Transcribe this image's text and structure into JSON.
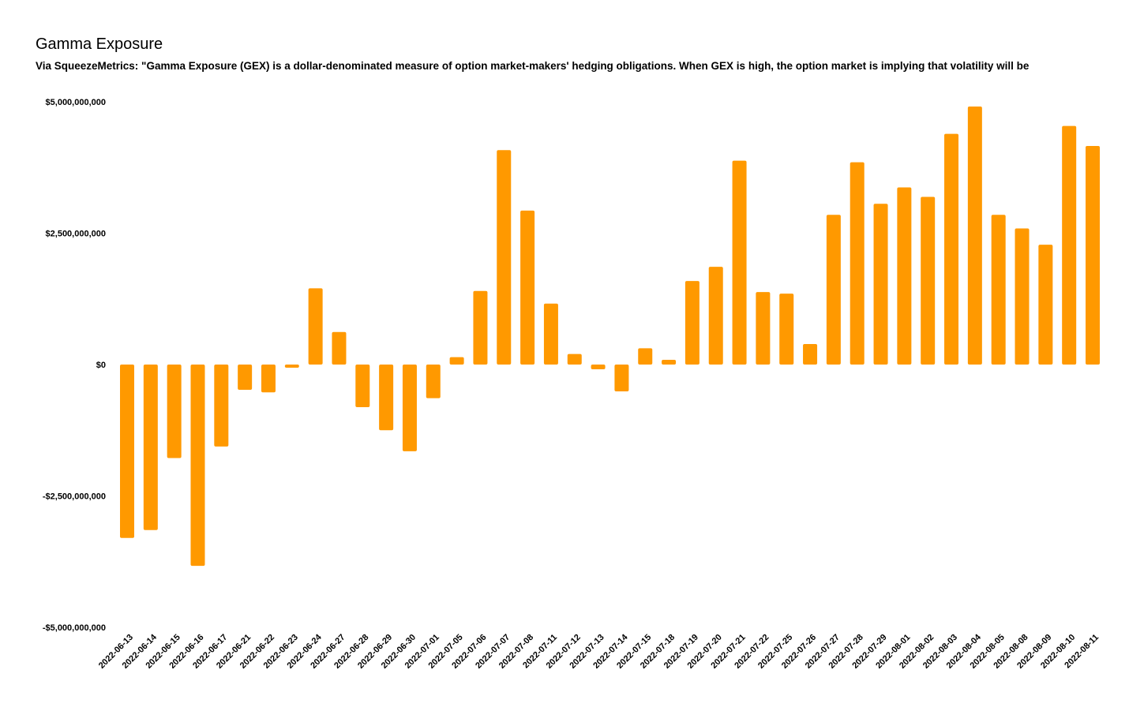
{
  "chart_data": {
    "type": "bar",
    "title": "Gamma Exposure",
    "subtitle": "Via SqueezeMetrics: \"Gamma Exposure (GEX) is a dollar-denominated measure of option market-makers' hedging obligations. When GEX is high, the option market is implying that volatility will be",
    "xlabel": "",
    "ylabel": "",
    "ylim": [
      -5000000000,
      5000000000
    ],
    "yticks": [
      {
        "value": 5000000000,
        "label": "$5,000,000,000"
      },
      {
        "value": 2500000000,
        "label": "$2,500,000,000"
      },
      {
        "value": 0,
        "label": "$0"
      },
      {
        "value": -2500000000,
        "label": "-$2,500,000,000"
      },
      {
        "value": -5000000000,
        "label": "-$5,000,000,000"
      }
    ],
    "grid": false,
    "legend": "none",
    "bar_color": "#ff9900",
    "categories": [
      "2022-06-13",
      "2022-06-14",
      "2022-06-15",
      "2022-06-16",
      "2022-06-17",
      "2022-06-21",
      "2022-06-22",
      "2022-06-23",
      "2022-06-24",
      "2022-06-27",
      "2022-06-28",
      "2022-06-29",
      "2022-06-30",
      "2022-07-01",
      "2022-07-05",
      "2022-07-06",
      "2022-07-07",
      "2022-07-08",
      "2022-07-11",
      "2022-07-12",
      "2022-07-13",
      "2022-07-14",
      "2022-07-15",
      "2022-07-18",
      "2022-07-19",
      "2022-07-20",
      "2022-07-21",
      "2022-07-22",
      "2022-07-25",
      "2022-07-26",
      "2022-07-27",
      "2022-07-28",
      "2022-07-29",
      "2022-08-01",
      "2022-08-02",
      "2022-08-03",
      "2022-08-04",
      "2022-08-05",
      "2022-08-08",
      "2022-08-09",
      "2022-08-10",
      "2022-08-11"
    ],
    "values": [
      -3300000000,
      -3150000000,
      -1780000000,
      -3830000000,
      -1560000000,
      -480000000,
      -530000000,
      -60000000,
      1450000000,
      620000000,
      -810000000,
      -1250000000,
      -1650000000,
      -640000000,
      140000000,
      1400000000,
      4080000000,
      2930000000,
      1160000000,
      200000000,
      -90000000,
      -510000000,
      310000000,
      90000000,
      1590000000,
      1860000000,
      3880000000,
      1380000000,
      1350000000,
      390000000,
      2850000000,
      3850000000,
      3060000000,
      3370000000,
      3190000000,
      4390000000,
      4910000000,
      2850000000,
      2590000000,
      2280000000,
      4540000000,
      4160000000
    ]
  }
}
